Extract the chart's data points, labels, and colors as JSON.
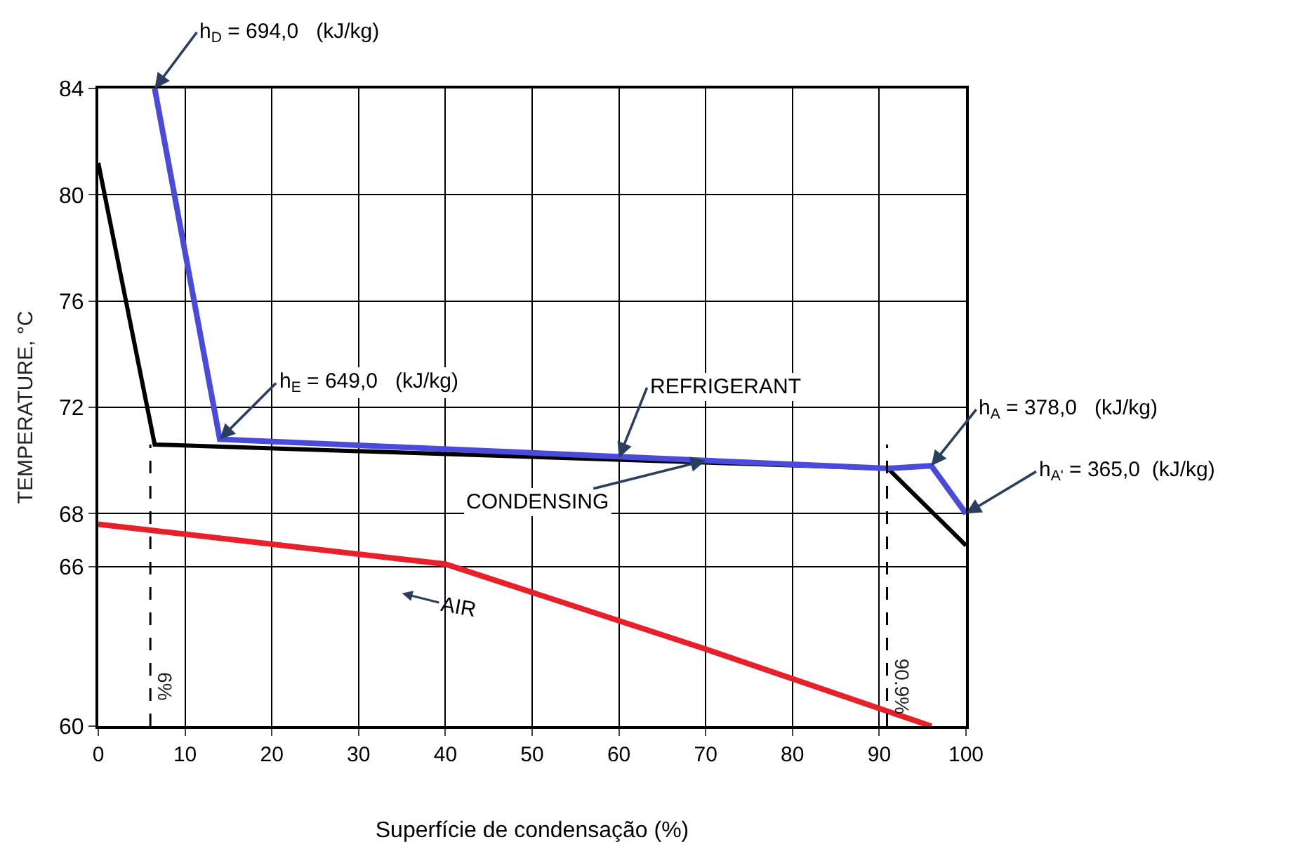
{
  "chart_data": {
    "type": "line",
    "xlabel": "Superfície de condensação (%)",
    "ylabel": "TEMPERATURE, °C",
    "xlim": [
      0,
      100
    ],
    "xticks": [
      0,
      10,
      20,
      30,
      40,
      50,
      60,
      70,
      80,
      90,
      100
    ],
    "ylim": [
      60,
      84
    ],
    "yticks": [
      60,
      66,
      68,
      72,
      76,
      80,
      84
    ],
    "grid": true,
    "marker": "none",
    "line_style": "solid",
    "series": [
      {
        "color": "#000000",
        "x": [
          0,
          6.5,
          91,
          100
        ],
        "values": [
          81.2,
          70.6,
          69.7,
          66.8
        ]
      },
      {
        "color": "#4a4adc",
        "x": [
          6.5,
          14,
          91,
          96,
          100
        ],
        "values": [
          84,
          70.8,
          69.7,
          69.8,
          68.0
        ]
      },
      {
        "color": "#e8202a",
        "x": [
          0,
          40,
          70,
          96
        ],
        "values": [
          67.6,
          66.1,
          62.9,
          60
        ]
      }
    ],
    "ref_lines": [
      {
        "axis": "x",
        "value": 6,
        "label": "6%",
        "color": "#000000",
        "line_style": "dashed"
      },
      {
        "axis": "x",
        "value": 90.9,
        "label": "90.9%",
        "color": "#000000",
        "line_style": "dashed"
      }
    ],
    "annotations": [
      {
        "text": "h$_{D}$ = 694,0   (kJ/kg)",
        "x": 6.5,
        "y": 84
      },
      {
        "text": "h$_{E}$ = 649,0   (kJ/kg)",
        "x": 14,
        "y": 70.8
      },
      {
        "text": "h$_{A}$ = 378,0   (kJ/kg)",
        "x": 96,
        "y": 69.8
      },
      {
        "text": "h$_{A'}$ = 365,0  (kJ/kg)",
        "x": 100,
        "y": 68.0
      },
      {
        "text": "REFRIGERANT",
        "x": 60,
        "y": 70.1
      },
      {
        "text": "CONDENSING",
        "x": 70,
        "y": 70.0
      },
      "AIR"
    ]
  }
}
